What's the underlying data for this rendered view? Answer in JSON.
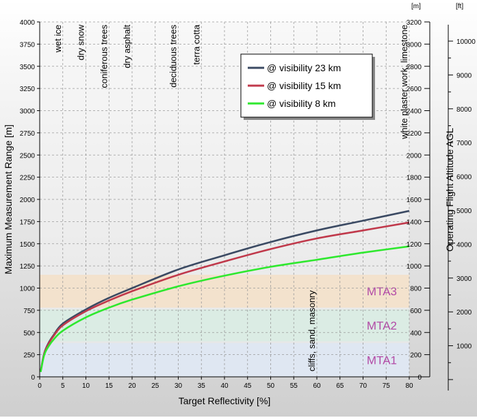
{
  "chart_data": {
    "type": "line",
    "xlabel": "Target Reflectivity [%]",
    "ylabel": "Maximum Measurement Range [m]",
    "ylabel_right": "Operating Flight Altitude AGL",
    "unit_m": "[m]",
    "unit_ft": "[ft]",
    "xlim": [
      0,
      80
    ],
    "ylim": [
      0,
      4000
    ],
    "grid": true,
    "x_ticks": [
      "0",
      "5",
      "10",
      "15",
      "20",
      "25",
      "30",
      "35",
      "40",
      "45",
      "50",
      "55",
      "60",
      "65",
      "70",
      "75",
      "80"
    ],
    "y_ticks": [
      "0",
      "250",
      "500",
      "750",
      "1000",
      "1250",
      "1500",
      "1750",
      "2000",
      "2250",
      "2500",
      "2750",
      "3000",
      "3250",
      "3500",
      "3750",
      "4000"
    ],
    "altitude_m_ticks": [
      "0",
      "200",
      "400",
      "600",
      "800",
      "1000",
      "1200",
      "1400",
      "1600",
      "1800",
      "2000",
      "2200",
      "2400",
      "2600",
      "2800",
      "3000",
      "3200"
    ],
    "altitude_ft_ticks": [
      "1000",
      "2000",
      "3000",
      "4000",
      "5000",
      "6000",
      "7000",
      "8000",
      "9000",
      "10000"
    ],
    "series": [
      {
        "name": "@ visibility 23 km",
        "color": "#3b4a63",
        "points": [
          [
            0.2,
            60
          ],
          [
            1,
            270
          ],
          [
            2,
            390
          ],
          [
            3,
            470
          ],
          [
            5,
            600
          ],
          [
            10,
            760
          ],
          [
            15,
            890
          ],
          [
            20,
            1000
          ],
          [
            30,
            1210
          ],
          [
            40,
            1370
          ],
          [
            50,
            1520
          ],
          [
            60,
            1650
          ],
          [
            70,
            1760
          ],
          [
            80,
            1870
          ]
        ]
      },
      {
        "name": "@ visibility 15 km",
        "color": "#c0394b",
        "points": [
          [
            0.2,
            60
          ],
          [
            1,
            265
          ],
          [
            2,
            380
          ],
          [
            3,
            460
          ],
          [
            5,
            580
          ],
          [
            10,
            740
          ],
          [
            15,
            860
          ],
          [
            20,
            965
          ],
          [
            30,
            1150
          ],
          [
            40,
            1300
          ],
          [
            50,
            1440
          ],
          [
            60,
            1560
          ],
          [
            70,
            1650
          ],
          [
            80,
            1740
          ]
        ]
      },
      {
        "name": "@ visibility 8 km",
        "color": "#2ee82e",
        "points": [
          [
            0.2,
            55
          ],
          [
            1,
            250
          ],
          [
            2,
            350
          ],
          [
            3,
            420
          ],
          [
            5,
            520
          ],
          [
            10,
            670
          ],
          [
            15,
            780
          ],
          [
            20,
            870
          ],
          [
            30,
            1020
          ],
          [
            40,
            1140
          ],
          [
            50,
            1240
          ],
          [
            60,
            1320
          ],
          [
            70,
            1400
          ],
          [
            80,
            1470
          ]
        ]
      }
    ],
    "bands": [
      {
        "label": "MTA1",
        "range": [
          0,
          380
        ],
        "color": "#dfe7f2"
      },
      {
        "label": "MTA2",
        "range": [
          400,
          760
        ],
        "color": "#dbece4"
      },
      {
        "label": "MTA3",
        "range": [
          780,
          1150
        ],
        "color": "#f3e2cd"
      }
    ],
    "materials": [
      {
        "label": "wet ice",
        "x": 5
      },
      {
        "label": "dry snow",
        "x": 10
      },
      {
        "label": "coniferous trees",
        "x": 15
      },
      {
        "label": "dry asphalt",
        "x": 20
      },
      {
        "label": "deciduous trees",
        "x": 30
      },
      {
        "label": "terra cotta",
        "x": 35
      },
      {
        "label": "cliffs, sand, masonry",
        "x": 60
      },
      {
        "label": "white plaster work, limestone",
        "x": 80
      }
    ]
  }
}
